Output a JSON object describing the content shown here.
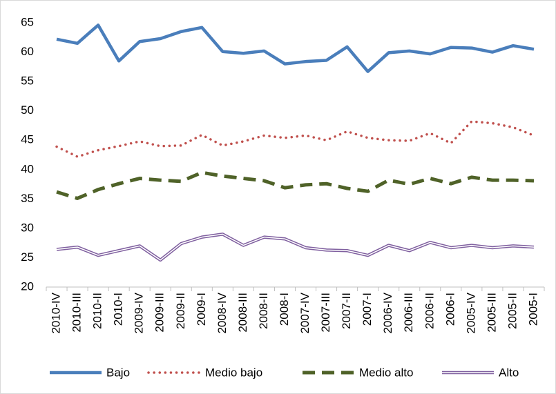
{
  "chart_data": {
    "type": "line",
    "categories": [
      "2010-IV",
      "2010-III",
      "2010-II",
      "2010-I",
      "2009-IV",
      "2009-III",
      "2009-II",
      "2009-I",
      "2008-IV",
      "2008-III",
      "2008-II",
      "2008-I",
      "2007-IV",
      "2007-III",
      "2007-II",
      "2007-I",
      "2006-IV",
      "2006-III",
      "2006-II",
      "2006-I",
      "2005-IV",
      "2005-III",
      "2005-II",
      "2005-I"
    ],
    "series": [
      {
        "name": "Bajo",
        "color": "#4a7ebb",
        "dash": "solid",
        "values": [
          62.2,
          61.5,
          64.6,
          58.5,
          61.8,
          62.3,
          63.5,
          64.2,
          60.1,
          59.8,
          60.2,
          58.0,
          58.4,
          58.6,
          60.9,
          56.7,
          59.9,
          60.2,
          59.7,
          60.8,
          60.7,
          60.0,
          61.1,
          60.5
        ]
      },
      {
        "name": "Medio bajo",
        "color": "#c0504d",
        "dash": "dotted",
        "values": [
          43.9,
          42.2,
          43.3,
          44.0,
          44.8,
          44.0,
          44.1,
          45.9,
          44.1,
          44.8,
          45.8,
          45.4,
          45.8,
          45.0,
          46.5,
          45.4,
          45.0,
          44.9,
          46.2,
          44.5,
          48.2,
          47.9,
          47.2,
          45.8
        ]
      },
      {
        "name": "Medio alto",
        "color": "#4f6228",
        "dash": "dashed",
        "values": [
          36.2,
          35.1,
          36.6,
          37.6,
          38.5,
          38.2,
          38.0,
          39.5,
          38.9,
          38.5,
          38.1,
          36.9,
          37.4,
          37.6,
          36.8,
          36.3,
          38.2,
          37.5,
          38.5,
          37.6,
          38.7,
          38.2,
          38.2,
          38.1
        ]
      },
      {
        "name": "Alto",
        "color": "#7f5f9f",
        "dash": "double",
        "values": [
          26.4,
          26.8,
          25.4,
          26.2,
          27.0,
          24.6,
          27.4,
          28.5,
          29.0,
          27.1,
          28.5,
          28.2,
          26.7,
          26.3,
          26.2,
          25.4,
          27.1,
          26.2,
          27.6,
          26.7,
          27.1,
          26.7,
          27.0,
          26.8
        ]
      }
    ],
    "ylim": [
      20,
      65
    ],
    "yticks": [
      20,
      25,
      30,
      35,
      40,
      45,
      50,
      55,
      60,
      65
    ],
    "grid": false,
    "legend": "bottom"
  }
}
